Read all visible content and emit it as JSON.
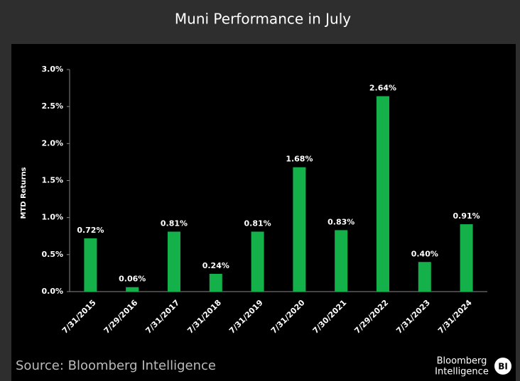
{
  "header": {
    "title": "Muni Performance in July"
  },
  "chart_data": {
    "type": "bar",
    "y_label": "MTD Returns",
    "categories": [
      "7/31/2015",
      "7/29/2016",
      "7/31/2017",
      "7/31/2018",
      "7/31/2019",
      "7/31/2020",
      "7/30/2021",
      "7/29/2022",
      "7/31/2023",
      "7/31/2024"
    ],
    "values": [
      0.72,
      0.06,
      0.81,
      0.24,
      0.81,
      1.68,
      0.83,
      2.64,
      0.4,
      0.91
    ],
    "value_labels": [
      "0.72%",
      "0.06%",
      "0.81%",
      "0.24%",
      "0.81%",
      "1.68%",
      "0.83%",
      "2.64%",
      "0.40%",
      "0.91%"
    ],
    "color": "#14b14b",
    "ylim": [
      0,
      3
    ],
    "yticks": [
      {
        "value": 0,
        "label": "0.0%"
      },
      {
        "value": 0.5,
        "label": "0.5%"
      },
      {
        "value": 1,
        "label": "1.0%"
      },
      {
        "value": 1.5,
        "label": "1.5%"
      },
      {
        "value": 2,
        "label": "2.0%"
      },
      {
        "value": 2.5,
        "label": "2.5%"
      },
      {
        "value": 3,
        "label": "3.0%"
      }
    ],
    "grid": false
  },
  "footer": {
    "source": "Source: Bloomberg Intelligence",
    "logo_line1": "Bloomberg",
    "logo_line2": "Intelligence",
    "logo_badge": "BI"
  }
}
